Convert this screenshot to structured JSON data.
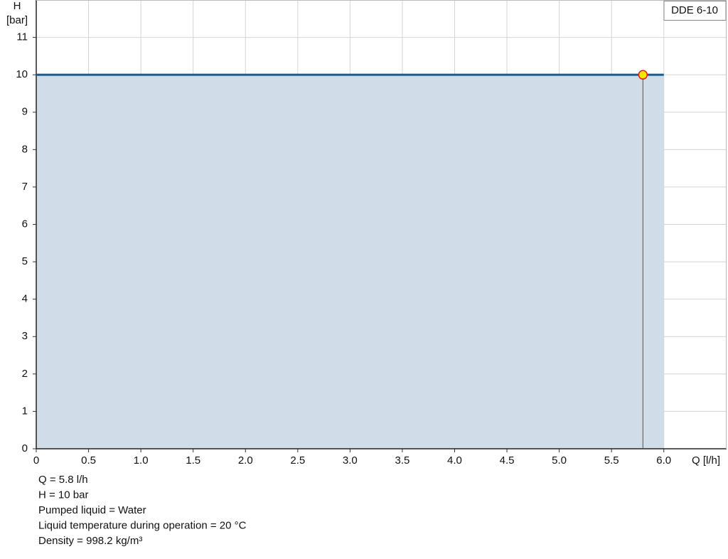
{
  "chart_data": {
    "type": "line",
    "legend": "DDE 6-10",
    "xlabel": "Q [l/h]",
    "ylabel": "H",
    "yunit": "[bar]",
    "series": [
      {
        "name": "DDE 6-10",
        "color": "#1d5a8a",
        "fill": "#d0dce7",
        "x": [
          0,
          6.0
        ],
        "values": [
          10,
          10
        ]
      }
    ],
    "operating_point": {
      "x": 5.8,
      "y": 10,
      "color": "#ffe600",
      "stroke": "#e02020"
    },
    "xlim": [
      0,
      6.6
    ],
    "ylim": [
      0,
      12
    ],
    "xticks": [
      0,
      0.5,
      {
        "value": 1,
        "label": "1.0"
      },
      1.5,
      {
        "value": 2,
        "label": "2.0"
      },
      2.5,
      {
        "value": 3,
        "label": "3.0"
      },
      3.5,
      {
        "value": 4,
        "label": "4.0"
      },
      4.5,
      {
        "value": 5,
        "label": "5.0"
      },
      5.5,
      {
        "value": 6,
        "label": "6.0"
      }
    ],
    "yticks": [
      0,
      1,
      2,
      3,
      4,
      5,
      6,
      7,
      8,
      9,
      10,
      11
    ],
    "grid": true,
    "info": [
      "Q = 5.8 l/h",
      "H = 10 bar",
      "Pumped liquid = Water",
      "Liquid temperature during operation = 20 °C",
      "Density = 998.2 kg/m³"
    ]
  }
}
